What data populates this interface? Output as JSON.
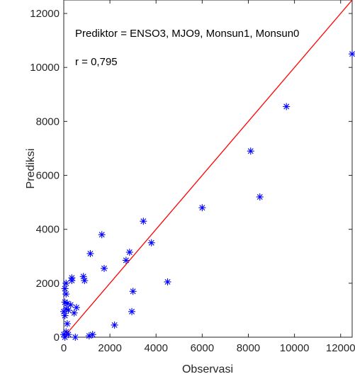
{
  "chart_data": {
    "type": "scatter",
    "title": "",
    "xlabel": "Observasi",
    "ylabel": "Prediksi",
    "xlim": [
      0,
      12500
    ],
    "ylim": [
      0,
      12500
    ],
    "xticks": [
      0,
      2000,
      4000,
      6000,
      8000,
      10000,
      12000
    ],
    "yticks": [
      0,
      2000,
      4000,
      6000,
      8000,
      10000,
      12000
    ],
    "grid": false,
    "annotations": [
      "Prediktor = ENSO3, MJO9, Monsun1, Monsun0",
      "r = 0,795"
    ],
    "reference_line": {
      "from": [
        0,
        0
      ],
      "to": [
        12500,
        12500
      ],
      "color": "#ff0000"
    },
    "series": [
      {
        "marker": "asterisk",
        "color": "#0000ff",
        "points": [
          [
            12500,
            10500
          ],
          [
            9650,
            8550
          ],
          [
            8100,
            6900
          ],
          [
            8500,
            5200
          ],
          [
            6000,
            4800
          ],
          [
            4500,
            2050
          ],
          [
            3800,
            3500
          ],
          [
            3450,
            4300
          ],
          [
            3000,
            1700
          ],
          [
            2950,
            950
          ],
          [
            2850,
            3150
          ],
          [
            2700,
            2850
          ],
          [
            2200,
            450
          ],
          [
            1750,
            2550
          ],
          [
            1650,
            3800
          ],
          [
            1250,
            100
          ],
          [
            1150,
            3100
          ],
          [
            1100,
            50
          ],
          [
            900,
            2100
          ],
          [
            850,
            2250
          ],
          [
            550,
            1100
          ],
          [
            500,
            0
          ],
          [
            450,
            900
          ],
          [
            350,
            2100
          ],
          [
            350,
            2200
          ],
          [
            300,
            1200
          ],
          [
            200,
            100
          ],
          [
            200,
            1000
          ],
          [
            150,
            1250
          ],
          [
            150,
            500
          ],
          [
            100,
            2000
          ],
          [
            100,
            1600
          ],
          [
            100,
            1050
          ],
          [
            100,
            200
          ],
          [
            50,
            800
          ],
          [
            50,
            1300
          ],
          [
            50,
            0
          ],
          [
            50,
            1800
          ],
          [
            0,
            100
          ],
          [
            0,
            950
          ]
        ]
      }
    ]
  }
}
